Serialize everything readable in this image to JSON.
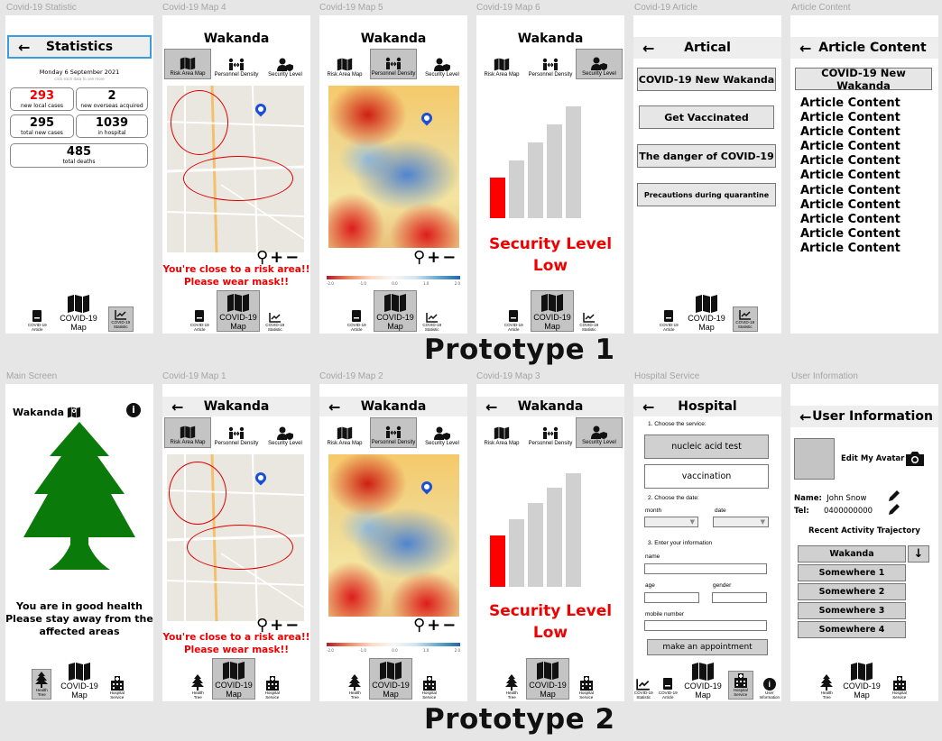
{
  "frame_labels": {
    "f1": "Covid-19 Statistic",
    "f2": "Covid-19 Map 4",
    "f3": "Covid-19 Map 5",
    "f4": "Covid-19 Map 6",
    "f5": "Covid-19 Article",
    "f6": "Article Content",
    "f7": "Main Screen",
    "f8": "Covid-19 Map 1",
    "f9": "Covid-19 Map 2",
    "f10": "Covid-19 Map 3",
    "f11": "Hospital Service",
    "f12": "User Information"
  },
  "prototype_labels": {
    "p1": "Prototype 1",
    "p2": "Prototype 2"
  },
  "statistics": {
    "title": "Statistics",
    "date": "Monday 6 September 2021",
    "hint": "click each data to see more",
    "local_cases": "293",
    "local_cases_label": "new local cases",
    "overseas": "2",
    "overseas_label": "new overseas acquired",
    "total_new": "295",
    "total_new_label": "total new cases",
    "hospital": "1039",
    "hospital_label": "in hospital",
    "deaths": "485",
    "deaths_label": "total deaths"
  },
  "region": "Wakanda",
  "tabs": {
    "risk": "Risk Area Map",
    "density": "Personnel Density",
    "security": "Security Level"
  },
  "map": {
    "warning_line1": "You're close to a risk area!!",
    "warning_line2": "Please wear mask!!",
    "scale_ticks": [
      "-2.0",
      "-1.0",
      "0.0",
      "1.0",
      "2.0"
    ]
  },
  "security": {
    "label": "Security Level",
    "value": "Low",
    "level": 1,
    "levels": 5
  },
  "nav1": {
    "article": "COVID-19 Article",
    "map_line1": "COVID-19",
    "map_line2": "Map",
    "statistic": "COVID-19 Statistic"
  },
  "nav2": {
    "tree": "Health Tree",
    "map_line1": "COVID-19",
    "map_line2": "Map",
    "hospital": "Hospital Service",
    "statistic": "COVID-19 Statistic",
    "article": "COVID-19 Article",
    "user": "User Information"
  },
  "article": {
    "title": "Artical",
    "items": [
      "COVID-19 New Wakanda",
      "Get Vaccinated",
      "The danger of COVID-19",
      "Precautions during quarantine"
    ]
  },
  "article_content": {
    "title": "Article Content",
    "heading": "COVID-19 New Wakanda",
    "lines": [
      "Article Content",
      "Article Content",
      "Article Content",
      "Article Content",
      "Article Content",
      "Article Content",
      "Article Content",
      "Article Content",
      "Article Content",
      "Article Content",
      "Article Content"
    ]
  },
  "main": {
    "region": "Wakanda",
    "msg1": "You are in good health",
    "msg2": "Please stay away from the",
    "msg3": "affected areas"
  },
  "hospital": {
    "title": "Hospital",
    "step1": "1.  Choose the service:",
    "svc1": "nucleic acid test",
    "svc2": "vaccination",
    "step2": "2.  Choose the date:",
    "month": "month",
    "date": "date",
    "step3": "3.  Enter your information",
    "name": "name",
    "age": "age",
    "gender": "gender",
    "mobile": "mobile number",
    "submit": "make an appointment"
  },
  "user": {
    "title": "User Information",
    "edit_avatar": "Edit My Avatar",
    "name_label": "Name:",
    "name": "John Snow",
    "tel_label": "Tel:",
    "tel": "0400000000",
    "recent": "Recent Activity Trajectory",
    "locations": [
      "Wakanda",
      "Somewhere 1",
      "Somewhere 2",
      "Somewhere 3",
      "Somewhere 4"
    ]
  },
  "colors": {
    "accent_red": "#ff0000",
    "tree_green": "#007a00",
    "selection_blue": "#3b9ce0"
  }
}
